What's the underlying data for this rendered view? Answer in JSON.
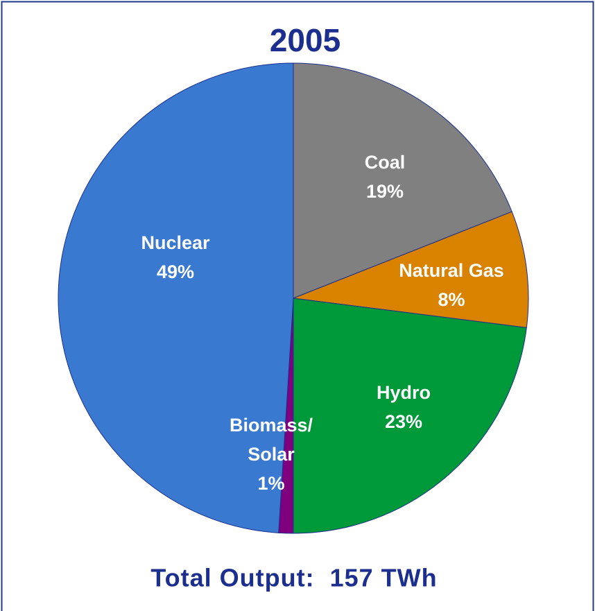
{
  "chart_data": {
    "type": "pie",
    "title": "2005",
    "categories": [
      "Coal",
      "Natural Gas",
      "Hydro",
      [
        "Biomass/",
        "Solar"
      ],
      "Nuclear"
    ],
    "values": [
      19,
      8,
      23,
      1,
      49
    ],
    "value_labels": [
      "19%",
      "8%",
      "23%",
      "1%",
      "49%"
    ],
    "colors": [
      "#808080",
      "#d98200",
      "#00993a",
      "#7f007f",
      "#3a79d0"
    ],
    "footer": "Total Output:  157 TWh"
  }
}
